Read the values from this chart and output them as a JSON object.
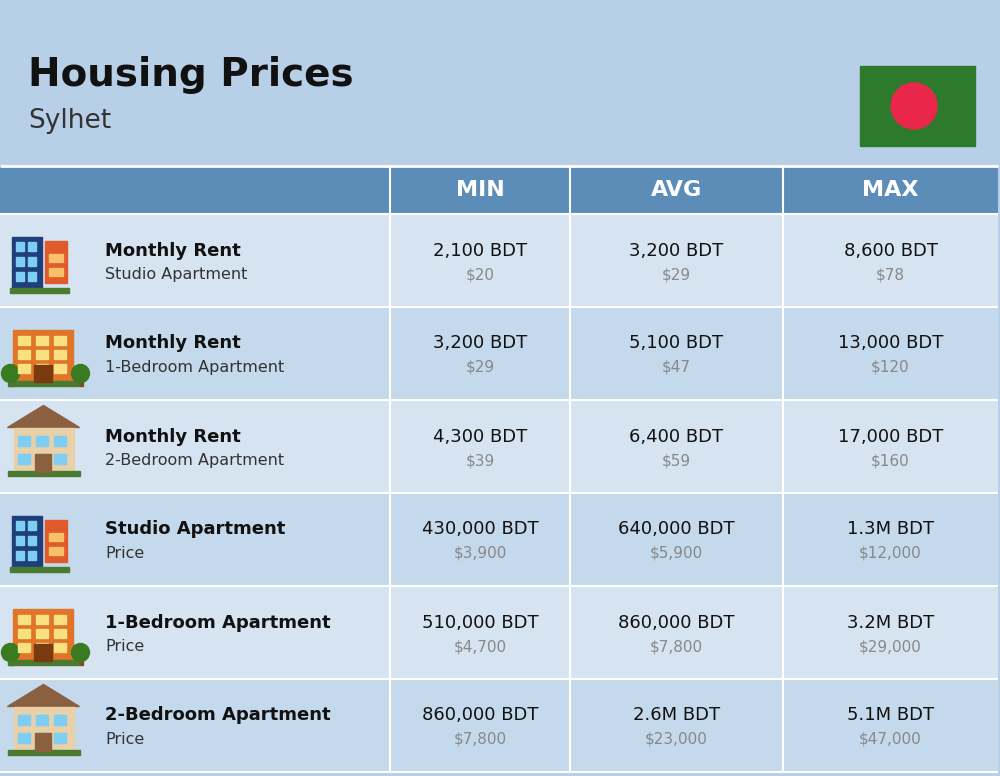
{
  "title": "Housing Prices",
  "subtitle": "Sylhet",
  "bg_color": "#b8cfe8",
  "header_bg": "#5b8db8",
  "row_bg_even": "#d6e4f2",
  "row_bg_odd": "#c5d9ec",
  "divider_color": "#ffffff",
  "header_labels": [
    "MIN",
    "AVG",
    "MAX"
  ],
  "rows": [
    {
      "icon_type": "blue_office",
      "label_bold": "Monthly Rent",
      "label_sub": "Studio Apartment",
      "min_bdt": "2,100 BDT",
      "min_usd": "$20",
      "avg_bdt": "3,200 BDT",
      "avg_usd": "$29",
      "max_bdt": "8,600 BDT",
      "max_usd": "$78"
    },
    {
      "icon_type": "orange_apt",
      "label_bold": "Monthly Rent",
      "label_sub": "1-Bedroom Apartment",
      "min_bdt": "3,200 BDT",
      "min_usd": "$29",
      "avg_bdt": "5,100 BDT",
      "avg_usd": "$47",
      "max_bdt": "13,000 BDT",
      "max_usd": "$120"
    },
    {
      "icon_type": "beige_house",
      "label_bold": "Monthly Rent",
      "label_sub": "2-Bedroom Apartment",
      "min_bdt": "4,300 BDT",
      "min_usd": "$39",
      "avg_bdt": "6,400 BDT",
      "avg_usd": "$59",
      "max_bdt": "17,000 BDT",
      "max_usd": "$160"
    },
    {
      "icon_type": "blue_office",
      "label_bold": "Studio Apartment",
      "label_sub": "Price",
      "min_bdt": "430,000 BDT",
      "min_usd": "$3,900",
      "avg_bdt": "640,000 BDT",
      "avg_usd": "$5,900",
      "max_bdt": "1.3M BDT",
      "max_usd": "$12,000"
    },
    {
      "icon_type": "orange_apt",
      "label_bold": "1-Bedroom Apartment",
      "label_sub": "Price",
      "min_bdt": "510,000 BDT",
      "min_usd": "$4,700",
      "avg_bdt": "860,000 BDT",
      "avg_usd": "$7,800",
      "max_bdt": "3.2M BDT",
      "max_usd": "$29,000"
    },
    {
      "icon_type": "beige_house",
      "label_bold": "2-Bedroom Apartment",
      "label_sub": "Price",
      "min_bdt": "860,000 BDT",
      "min_usd": "$7,800",
      "avg_bdt": "2.6M BDT",
      "avg_usd": "$23,000",
      "max_bdt": "5.1M BDT",
      "max_usd": "$47,000"
    }
  ]
}
